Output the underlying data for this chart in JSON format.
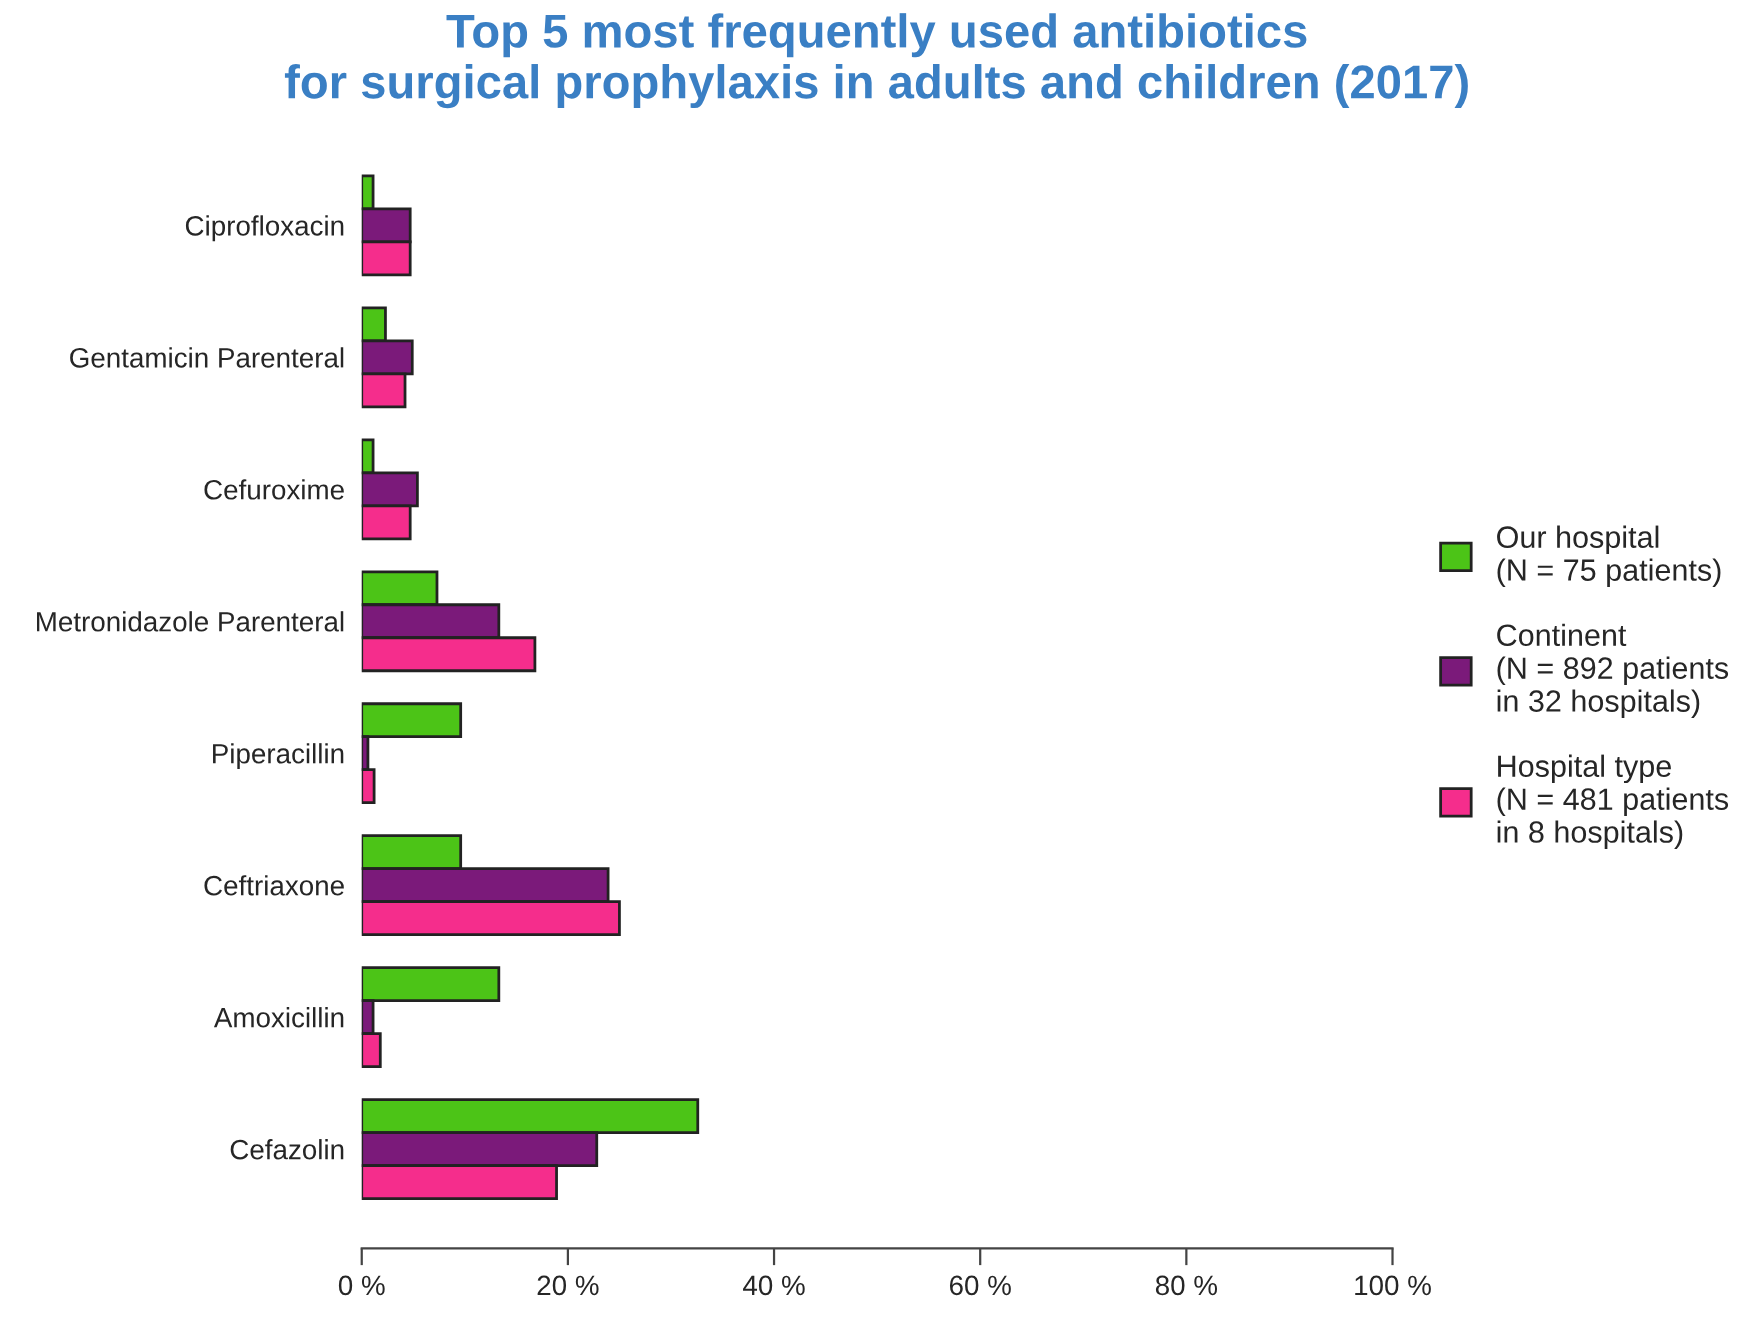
{
  "chart_data": {
    "type": "bar",
    "orientation": "horizontal",
    "title": "Top 5 most frequently used antibiotics\nfor surgical prophylaxis in adults and children (2017)",
    "categories": [
      "Ciprofloxacin",
      "Gentamicin Parenteral",
      "Cefuroxime",
      "Metronidazole Parenteral",
      "Piperacillin",
      "Ceftriaxone",
      "Amoxicillin",
      "Cefazolin"
    ],
    "series": [
      {
        "name": "Our hospital\n(N = 75 patients)",
        "color": "#4cc417",
        "values": [
          1.1,
          2.3,
          1.1,
          7.3,
          9.6,
          9.6,
          13.3,
          32.6
        ]
      },
      {
        "name": "Continent\n(N = 892 patients\nin 32 hospitals)",
        "color": "#7b1a7a",
        "values": [
          4.7,
          4.9,
          5.4,
          13.3,
          0.6,
          23.9,
          1.1,
          22.8
        ]
      },
      {
        "name": "Hospital type\n(N = 481 patients\nin 8 hospitals)",
        "color": "#f52d8c",
        "values": [
          4.7,
          4.2,
          4.7,
          16.8,
          1.2,
          25.0,
          1.8,
          18.9
        ]
      }
    ],
    "xlim": [
      0,
      100
    ],
    "xticks": [
      {
        "value": 0,
        "label": "0 %"
      },
      {
        "value": 20,
        "label": "20 %"
      },
      {
        "value": 40,
        "label": "40 %"
      },
      {
        "value": 60,
        "label": "60 %"
      },
      {
        "value": 80,
        "label": "80 %"
      },
      {
        "value": 100,
        "label": "100 %"
      }
    ],
    "grid": false,
    "legend": "right"
  }
}
